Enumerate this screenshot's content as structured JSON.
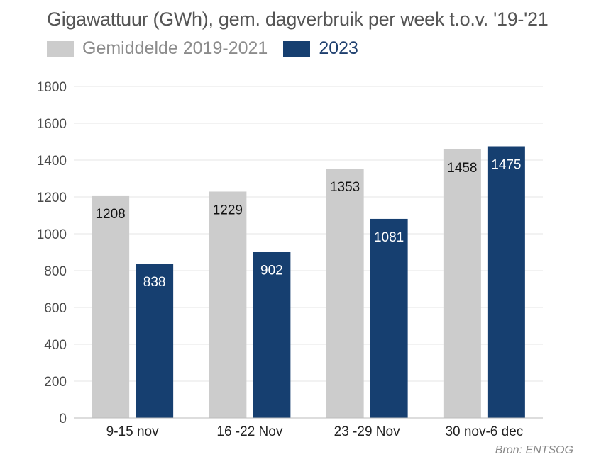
{
  "colors": {
    "baseline": "#cccccc",
    "current": "#163f70",
    "grid": "#e6e6e6",
    "axis_text": "#4a4a4a"
  },
  "chart_data": {
    "type": "bar",
    "title": "Gigawattuur (GWh), gem. dagverbruik per week t.o.v. '19-'21",
    "categories": [
      "9-15 nov",
      "16 -22 Nov",
      "23 -29 Nov",
      "30 nov-6 dec"
    ],
    "series": [
      {
        "name": "Gemiddelde 2019-2021",
        "values": [
          1208,
          1229,
          1353,
          1458
        ]
      },
      {
        "name": "2023",
        "values": [
          838,
          902,
          1081,
          1475
        ]
      }
    ],
    "ylim": [
      0,
      1800
    ],
    "yticks": [
      0,
      200,
      400,
      600,
      800,
      1000,
      1200,
      1400,
      1600,
      1800
    ],
    "xlabel": "",
    "ylabel": "",
    "grid": true,
    "legend": "top-left"
  },
  "source": "Bron: ENTSOG"
}
